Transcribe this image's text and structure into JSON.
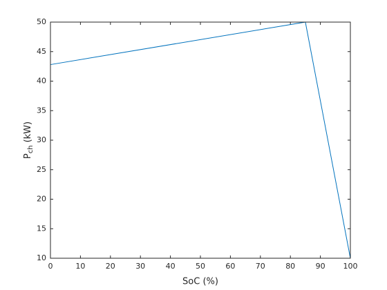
{
  "chart_data": {
    "type": "line",
    "xlabel": "SoC (%)",
    "ylabel": {
      "symbol": "P",
      "subscript": "ch",
      "unit": "(kW)"
    },
    "x": [
      0,
      85,
      100
    ],
    "series": [
      {
        "color": "#0072bd",
        "values": [
          42.8,
          50,
          10
        ]
      }
    ],
    "xlim": [
      0,
      100
    ],
    "xticks": [
      0,
      10,
      20,
      30,
      40,
      50,
      60,
      70,
      80,
      90,
      100
    ],
    "ylim": [
      10,
      50
    ],
    "yticks": [
      10,
      15,
      20,
      25,
      30,
      35,
      40,
      45,
      50
    ],
    "box": true
  }
}
